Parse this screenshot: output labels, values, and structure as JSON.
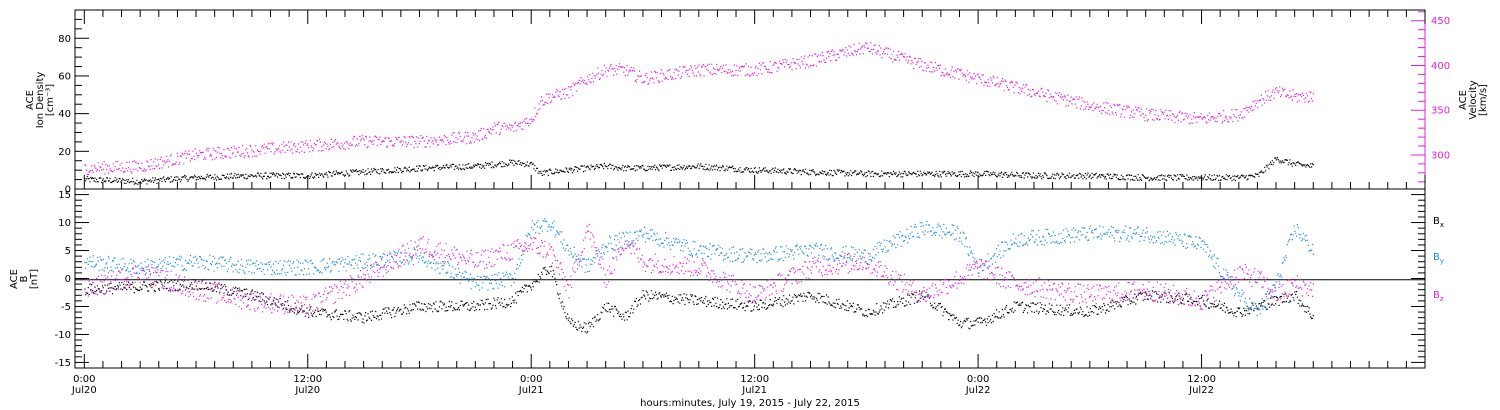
{
  "chart_data": [
    {
      "type": "scatter",
      "panel": "top",
      "ylabel_left": [
        "ACE",
        "Ion Density",
        "[cm⁻³]"
      ],
      "ylabel_right": [
        "ACE",
        "Velocity",
        "[km/s]"
      ],
      "left_axis": {
        "ylim": [
          0,
          95
        ],
        "ticks": [
          "0",
          "20",
          "40",
          "60",
          "80"
        ],
        "tick_values": [
          0,
          20,
          40,
          60,
          80
        ]
      },
      "right_axis": {
        "ylim": [
          262,
          462
        ],
        "ticks": [
          "300",
          "350",
          "400",
          "450"
        ],
        "tick_values": [
          300,
          350,
          400,
          450
        ],
        "color": "#e020e0"
      },
      "x_hours": [
        0,
        3,
        6,
        9,
        12,
        15,
        18,
        21,
        22,
        23,
        24,
        24.5,
        25,
        26,
        27,
        28,
        29,
        30,
        33,
        36,
        39,
        42,
        45,
        48,
        51,
        54,
        57,
        60,
        62,
        63,
        64,
        65,
        66
      ],
      "series": [
        {
          "axis": "left",
          "color": "#000000",
          "values": [
            5,
            4,
            6,
            7,
            7,
            9,
            11,
            12,
            13,
            14,
            13,
            8,
            9,
            10,
            11,
            12,
            11,
            11,
            12,
            10,
            9,
            8,
            8,
            8,
            7,
            7,
            6,
            6,
            6,
            7,
            16,
            13,
            12
          ]
        },
        {
          "axis": "right",
          "color": "#e020e0",
          "values": [
            285,
            287,
            300,
            305,
            310,
            315,
            315,
            320,
            330,
            330,
            340,
            360,
            365,
            370,
            385,
            395,
            395,
            385,
            395,
            395,
            405,
            420,
            400,
            385,
            370,
            355,
            345,
            340,
            345,
            360,
            370,
            365,
            365
          ]
        }
      ]
    },
    {
      "type": "scatter",
      "panel": "bottom",
      "ylabel": [
        "ACE",
        "B",
        "[nT]"
      ],
      "ylim": [
        -16,
        16
      ],
      "ticks": [
        "-15",
        "-10",
        "-5",
        "0",
        "5",
        "10",
        "15"
      ],
      "tick_values": [
        -15,
        -10,
        -5,
        0,
        5,
        10,
        15
      ],
      "legend": [
        {
          "base": "B",
          "sub": "x",
          "color": "#000000"
        },
        {
          "base": "B",
          "sub": "y",
          "color": "#1a8ce0"
        },
        {
          "base": "B",
          "sub": "z",
          "color": "#e020e0"
        }
      ],
      "x_hours": [
        0,
        3,
        6,
        9,
        12,
        15,
        18,
        21,
        23,
        24,
        25,
        26,
        27,
        28,
        29,
        30,
        33,
        36,
        39,
        42,
        45,
        47,
        48,
        50,
        54,
        57,
        60,
        62,
        63,
        64,
        65,
        66
      ],
      "series": [
        {
          "name": "Bx",
          "color": "#000000",
          "values": [
            -2,
            -1.5,
            -1,
            -3,
            -6,
            -7,
            -5,
            -5,
            -4,
            -1,
            2,
            -8,
            -9,
            -5,
            -7,
            -3,
            -4,
            -5,
            -3,
            -6,
            -3,
            -8,
            -8,
            -5,
            -6,
            -3,
            -4,
            -6,
            -5,
            -4,
            -3,
            -7
          ]
        },
        {
          "name": "By",
          "color": "#1a8ce0",
          "values": [
            3,
            2,
            3,
            2,
            2,
            3,
            4,
            -1,
            0,
            9,
            10,
            5,
            2,
            6,
            7,
            8,
            5,
            4,
            5,
            4,
            9,
            8,
            2,
            7,
            8,
            8,
            6,
            -3,
            -6,
            -1,
            9,
            5
          ]
        },
        {
          "name": "Bz",
          "color": "#e020e0",
          "values": [
            -2,
            1,
            -2,
            -4,
            -5,
            0,
            6,
            3,
            5,
            6,
            5,
            -2,
            9,
            0,
            7,
            3,
            2,
            -3,
            2,
            3,
            -3,
            0,
            2,
            -1,
            -3,
            -2,
            -4,
            1,
            0,
            -3,
            -1,
            -2
          ]
        }
      ]
    }
  ],
  "x_axis": {
    "ticks": [
      {
        "hours": 0,
        "line1": "0:00",
        "line2": "Jul20"
      },
      {
        "hours": 12,
        "line1": "12:00",
        "line2": "Jul20"
      },
      {
        "hours": 24,
        "line1": "0:00",
        "line2": "Jul21"
      },
      {
        "hours": 36,
        "line1": "12:00",
        "line2": "Jul21"
      },
      {
        "hours": 48,
        "line1": "0:00",
        "line2": "Jul22"
      },
      {
        "hours": 60,
        "line1": "12:00",
        "line2": "Jul22"
      }
    ],
    "range_hours": [
      -0.5,
      72
    ],
    "xlabel": "hours:minutes, July 19, 2015 - July 22, 2015"
  }
}
